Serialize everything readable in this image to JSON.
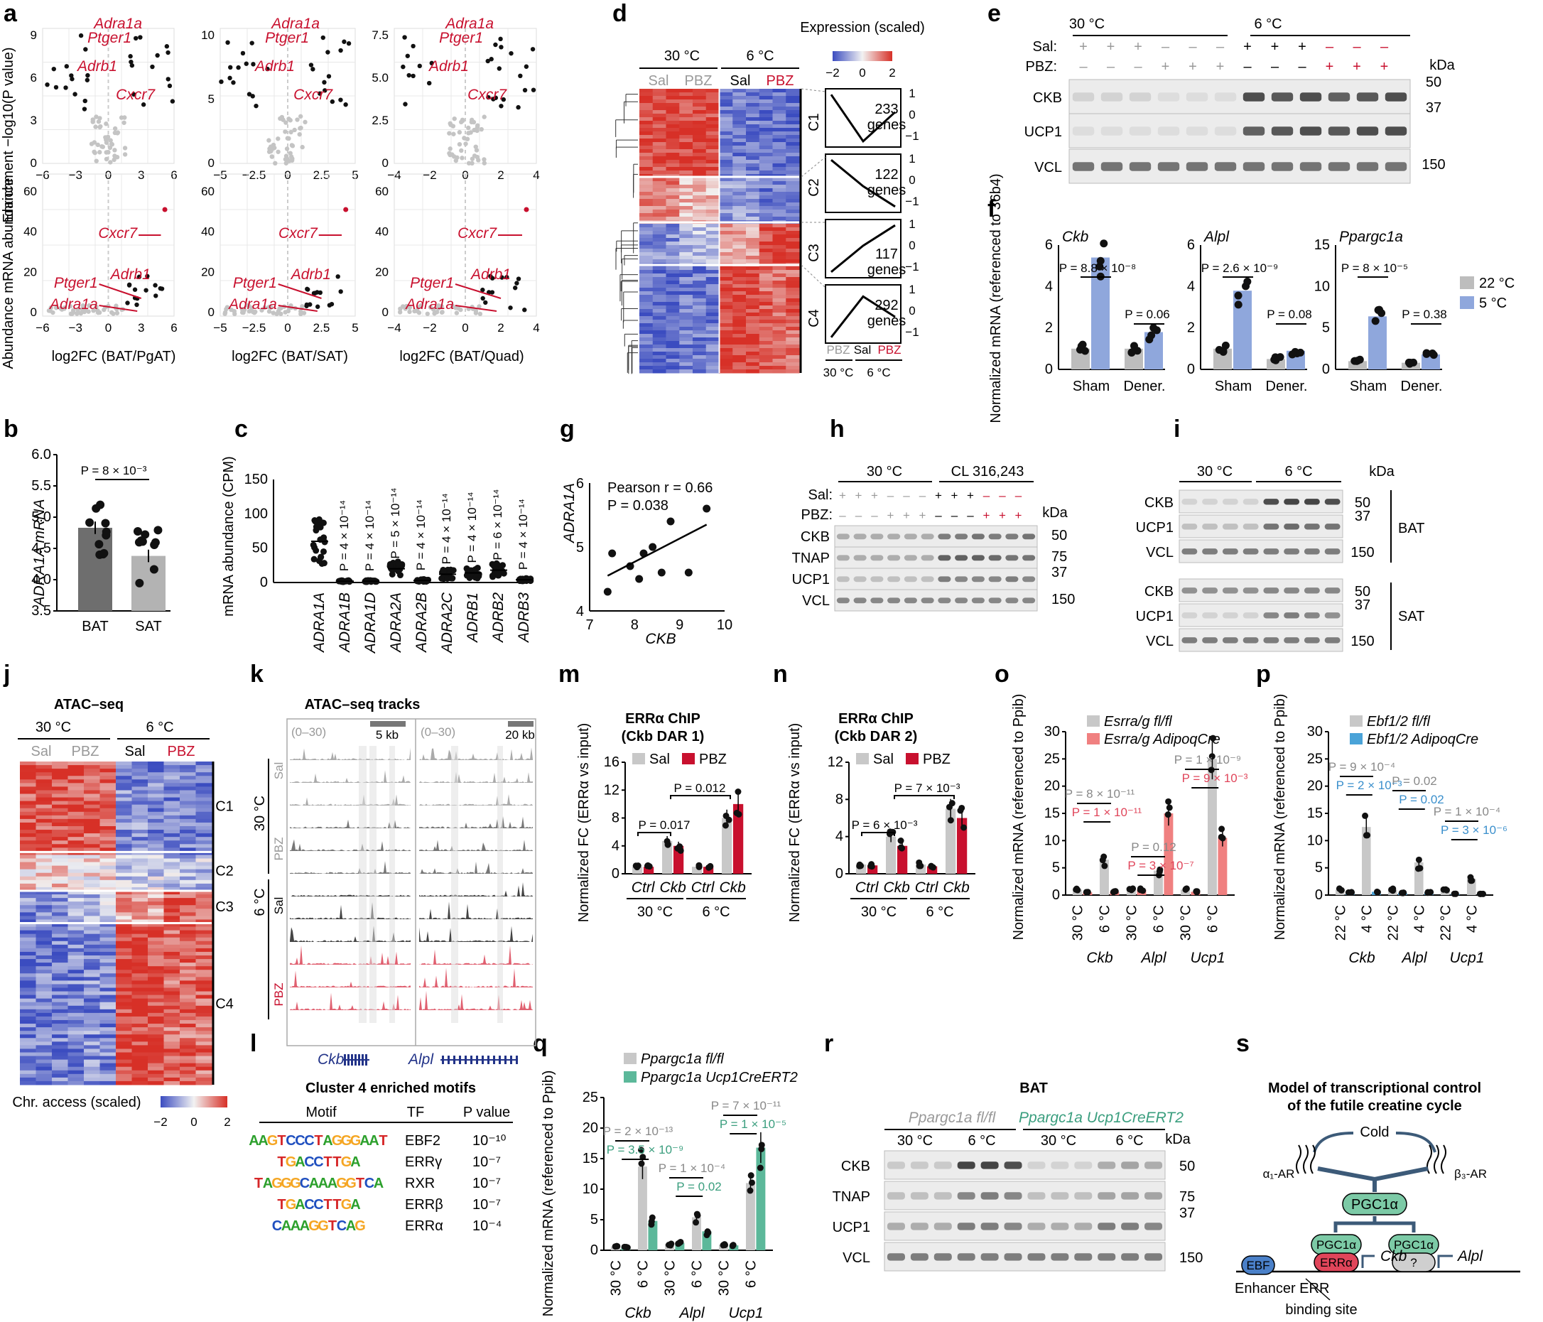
{
  "panel_letters": [
    "a",
    "b",
    "c",
    "d",
    "e",
    "f",
    "g",
    "h",
    "i",
    "j",
    "k",
    "l",
    "m",
    "n",
    "o",
    "p",
    "q",
    "r",
    "s"
  ],
  "a": {
    "y_top": "Enrichment −log10(P value)",
    "y_bottom": "Abundance mRNA abundance",
    "x_labels": [
      "log2FC (BAT/PgAT)",
      "log2FC (BAT/SAT)",
      "log2FC (BAT/Quad)"
    ],
    "genes": [
      "Ptger1",
      "Adra1a",
      "Adrb1",
      "Cxcr7"
    ]
  },
  "b": {
    "ylabel": "ADRA1A mRNA",
    "pvalue": "P = 8 × 10⁻³",
    "chart_data": {
      "type": "bar",
      "categories": [
        "BAT",
        "SAT"
      ],
      "values": [
        4.83,
        4.38
      ],
      "ylim": [
        3.5,
        6.0
      ],
      "yticks": [
        "3.5",
        "4.0",
        "4.5",
        "5.0",
        "5.5",
        "6.0"
      ],
      "colors": [
        "#6e6e6e",
        "#b3b3b3"
      ]
    }
  },
  "c": {
    "ylabel": "mRNA abundance (CPM)",
    "chart_data": {
      "type": "scatter",
      "categories": [
        "ADRA1A",
        "ADRA1B",
        "ADRA1D",
        "ADRA2A",
        "ADRA2B",
        "ADRA2C",
        "ADRB1",
        "ADRB2",
        "ADRB3"
      ],
      "values": [
        60,
        2,
        2,
        20,
        3,
        12,
        14,
        18,
        4
      ],
      "ylim": [
        0,
        150
      ],
      "yticks": [
        "0",
        "50",
        "100",
        "150"
      ]
    },
    "pvalues": [
      "P = 4 × 10⁻¹⁴",
      "P = 4 × 10⁻¹⁴",
      "P = 5 × 10⁻¹⁴",
      "P = 4 × 10⁻¹⁴",
      "P = 4 × 10⁻¹⁴",
      "P = 4 × 10⁻¹⁴",
      "P = 6 × 10⁻¹⁴",
      "P = 4 × 10⁻¹⁴"
    ]
  },
  "d": {
    "groups": [
      "30 °C",
      "6 °C"
    ],
    "conds": [
      "Sal",
      "PBZ",
      "Sal",
      "PBZ"
    ],
    "scale_title": "Expression (scaled)",
    "scale_ticks": [
      "−2",
      "0",
      "2"
    ],
    "clusters": [
      {
        "id": "C1",
        "genes": "233 genes"
      },
      {
        "id": "C2",
        "genes": "122 genes"
      },
      {
        "id": "C3",
        "genes": "117 genes"
      },
      {
        "id": "C4",
        "genes": "292 genes"
      }
    ],
    "profile_x": [
      "PBZ",
      "Sal",
      "PBZ"
    ],
    "profile_temps": [
      "30 °C",
      "6 °C"
    ]
  },
  "e": {
    "temps": [
      "30 °C",
      "6 °C"
    ],
    "rows": [
      "Sal:",
      "PBZ:"
    ],
    "bands": [
      "CKB",
      "UCP1",
      "VCL"
    ],
    "kda": [
      "50",
      "37",
      "150"
    ],
    "kda_label": "kDa"
  },
  "f": {
    "ylabel": "Normalized mRNA (referenced to 36b4)",
    "legend": [
      "22 °C",
      "5 °C"
    ],
    "panels": [
      {
        "gene": "Ckb",
        "p1": "P = 8.8 × 10⁻⁸",
        "p2": "P = 0.06",
        "yticks": [
          "0",
          "2",
          "4",
          "6"
        ]
      },
      {
        "gene": "Alpl",
        "p1": "P = 2.6 × 10⁻⁹",
        "p2": "P = 0.08",
        "yticks": [
          "0",
          "2",
          "4",
          "6"
        ]
      },
      {
        "gene": "Ppargc1a",
        "p1": "P = 8 × 10⁻⁵",
        "p2": "P = 0.38",
        "yticks": [
          "0",
          "5",
          "10",
          "15"
        ]
      }
    ],
    "xcats": [
      "Sham",
      "Dener."
    ],
    "chart_data": {
      "type": "bar",
      "series": [
        {
          "name": "22 °C",
          "values": [
            1.0,
            1.0,
            1.0,
            0.5,
            1.0,
            0.8
          ]
        },
        {
          "name": "5 °C",
          "values": [
            5.4,
            1.8,
            3.8,
            0.9,
            6.4,
            1.8
          ]
        }
      ]
    }
  },
  "g": {
    "ylabel": "ADRA1A",
    "xlabel": "CKB",
    "stat1": "Pearson r = 0.66",
    "stat2": "P = 0.038",
    "chart_data": {
      "type": "scatter",
      "x": [
        7.4,
        7.5,
        7.9,
        8.1,
        8.2,
        8.4,
        8.6,
        8.8,
        9.2,
        9.6
      ],
      "y": [
        4.3,
        4.9,
        4.7,
        4.5,
        4.9,
        5.0,
        4.6,
        5.4,
        4.6,
        5.6
      ],
      "xlim": [
        7,
        10
      ],
      "ylim": [
        4,
        6
      ]
    },
    "xticks": [
      "7",
      "8",
      "9",
      "10"
    ],
    "yticks": [
      "4",
      "5",
      "6"
    ]
  },
  "h": {
    "temps": [
      "30 °C",
      "CL 316,243"
    ],
    "rows": [
      "Sal:",
      "PBZ:"
    ],
    "bands": [
      "CKB",
      "TNAP",
      "UCP1",
      "VCL"
    ],
    "kda": [
      "50",
      "75",
      "37",
      "150"
    ],
    "kda_label": "kDa"
  },
  "i": {
    "temps": [
      "30 °C",
      "6 °C"
    ],
    "bands_bat": [
      "CKB",
      "UCP1",
      "VCL"
    ],
    "bands_sat": [
      "CKB",
      "UCP1",
      "VCL"
    ],
    "kda": [
      "50",
      "37",
      "150"
    ],
    "kda_label": "kDa",
    "tissues": [
      "BAT",
      "SAT"
    ]
  },
  "j": {
    "title": "ATAC–seq",
    "temps": [
      "30 °C",
      "6 °C"
    ],
    "conds": [
      "Sal",
      "PBZ",
      "Sal",
      "PBZ"
    ],
    "clusters": [
      "C1",
      "C2",
      "C3",
      "C4"
    ],
    "scale_label": "Chr. access (scaled)",
    "scale_ticks": [
      "−2",
      "0",
      "2"
    ]
  },
  "k": {
    "title": "ATAC–seq tracks",
    "range": "(0–30)",
    "scale1": "5 kb",
    "scale2": "20 kb",
    "temps": [
      "30 °C",
      "6 °C"
    ],
    "conds": [
      "Sal",
      "PBZ",
      "Sal",
      "PBZ"
    ],
    "genes": [
      "Ckb",
      "Alpl"
    ]
  },
  "l": {
    "title": "Cluster 4 enriched motifs",
    "headers": [
      "Motif",
      "TF",
      "P value"
    ],
    "rows": [
      {
        "seq": "AAGTCCCTAGGGAAT",
        "tf": "EBF2",
        "p": "10⁻¹⁰"
      },
      {
        "seq": "TGACCTTGA",
        "tf": "ERRγ",
        "p": "10⁻⁷"
      },
      {
        "seq": "TAGGGCAAAGGTCA",
        "tf": "RXR",
        "p": "10⁻⁷"
      },
      {
        "seq": "TGACCTTGA",
        "tf": "ERRβ",
        "p": "10⁻⁷"
      },
      {
        "seq": "CAAAGGTCAG",
        "tf": "ERRα",
        "p": "10⁻⁴"
      }
    ]
  },
  "m": {
    "title1": "ERRα ChIP",
    "title2": "(Ckb DAR 1)",
    "ylabel": "Normalized FC (ERRα vs input)",
    "legend": [
      "Sal",
      "PBZ"
    ],
    "p1": "P = 0.017",
    "p2": "P = 0.012",
    "xcats": [
      "Ctrl",
      "Ckb",
      "Ctrl",
      "Ckb"
    ],
    "temps": [
      "30 °C",
      "6 °C"
    ],
    "yticks": [
      "0",
      "4",
      "8",
      "12",
      "16"
    ],
    "chart_data": {
      "type": "bar",
      "series": [
        {
          "name": "Sal",
          "values": [
            1.0,
            4.7,
            1.0,
            8.0
          ]
        },
        {
          "name": "PBZ",
          "values": [
            1.0,
            4.0,
            1.0,
            10.0
          ]
        }
      ],
      "ylim": [
        0,
        16
      ]
    }
  },
  "n": {
    "title1": "ERRα ChIP",
    "title2": "(Ckb DAR 2)",
    "ylabel": "Normalized FC (ERRα vs input)",
    "legend": [
      "Sal",
      "PBZ"
    ],
    "p1": "P = 6 × 10⁻³",
    "p2": "P = 7 × 10⁻³",
    "xcats": [
      "Ctrl",
      "Ckb",
      "Ctrl",
      "Ckb"
    ],
    "temps": [
      "30 °C",
      "6 °C"
    ],
    "yticks": [
      "0",
      "4",
      "8",
      "12"
    ],
    "chart_data": {
      "type": "bar",
      "series": [
        {
          "name": "Sal",
          "values": [
            1.0,
            4.0,
            1.0,
            7.0
          ]
        },
        {
          "name": "PBZ",
          "values": [
            0.9,
            3.0,
            0.8,
            6.0
          ]
        }
      ],
      "ylim": [
        0,
        12
      ]
    }
  },
  "o": {
    "ylabel": "Normalized mRNA (referenced to Ppib)",
    "legend": [
      "Esrra/g fl/fl",
      "Esrra/g AdipoqCre"
    ],
    "pg": [
      "P = 8 × 10⁻¹¹",
      "P = 0.12",
      "P = 1 × 10⁻⁹"
    ],
    "pr": [
      "P = 1 × 10⁻¹¹",
      "P = 3 × 10⁻⁷",
      "P = 9 × 10⁻³"
    ],
    "genes": [
      "Ckb",
      "Alpl",
      "Ucp1"
    ],
    "temps": [
      "30 °C",
      "6 °C"
    ],
    "yticks": [
      "0",
      "5",
      "10",
      "15",
      "20",
      "25",
      "30"
    ],
    "chart_data": {
      "type": "bar",
      "series": [
        {
          "name": "Esrra/g fl/fl",
          "values": [
            1,
            6.5,
            1,
            4.5,
            1,
            25
          ]
        },
        {
          "name": "Esrra/g AdipoqCre",
          "values": [
            0.5,
            0.6,
            1,
            15,
            0.6,
            10.5
          ]
        }
      ],
      "ylim": [
        0,
        30
      ]
    }
  },
  "p": {
    "ylabel": "Normalized mRNA (referenced to Ppib)",
    "legend": [
      "Ebf1/2 fl/fl",
      "Ebf1/2 AdipoqCre"
    ],
    "pg": [
      "P = 9 × 10⁻⁴",
      "P = 0.02",
      "P = 1 × 10⁻⁴"
    ],
    "pb": [
      "P = 2 × 10⁻³",
      "P = 0.02",
      "P = 3 × 10⁻⁶"
    ],
    "genes": [
      "Ckb",
      "Alpl",
      "Ucp1"
    ],
    "temps": [
      "22 °C",
      "4 °C"
    ],
    "yticks": [
      "0",
      "5",
      "10",
      "15",
      "20",
      "25",
      "30"
    ],
    "chart_data": {
      "type": "bar",
      "series": [
        {
          "name": "Ebf1/2 fl/fl",
          "values": [
            1,
            12.5,
            1,
            6,
            1,
            3
          ]
        },
        {
          "name": "Ebf1/2 AdipoqCre",
          "values": [
            0.5,
            0.6,
            0.4,
            0.5,
            0.2,
            0.2
          ]
        }
      ],
      "ylim": [
        0,
        30
      ]
    }
  },
  "q": {
    "ylabel": "Normalized mRNA (referenced to Ppib)",
    "legend": [
      "Ppargc1a fl/fl",
      "Ppargc1a Ucp1CreERT2"
    ],
    "pg": [
      "P = 2 × 10⁻¹³",
      "P = 1 × 10⁻⁴",
      "P = 7 × 10⁻¹¹"
    ],
    "pt": [
      "P = 3.5 × 10⁻⁹",
      "P = 0.02",
      "P = 1 × 10⁻⁵"
    ],
    "genes": [
      "Ckb",
      "Alpl",
      "Ucp1"
    ],
    "temps": [
      "30 °C",
      "6 °C"
    ],
    "yticks": [
      "0",
      "5",
      "10",
      "15",
      "20",
      "25"
    ],
    "chart_data": {
      "type": "bar",
      "series": [
        {
          "name": "Ppargc1a fl/fl",
          "values": [
            0.6,
            13.7,
            1,
            5.4,
            0.9,
            11
          ]
        },
        {
          "name": "Ppargc1a Ucp1CreERT2",
          "values": [
            0.5,
            4.8,
            1.2,
            3.1,
            0.8,
            16.8
          ]
        }
      ],
      "ylim": [
        0,
        25
      ]
    }
  },
  "r": {
    "title": "BAT",
    "groups": [
      "Ppargc1a fl/fl",
      "Ppargc1a Ucp1CreERT2"
    ],
    "temps": [
      "30 °C",
      "6 °C",
      "30 °C",
      "6 °C"
    ],
    "bands": [
      "CKB",
      "TNAP",
      "UCP1",
      "VCL"
    ],
    "kda": [
      "50",
      "75",
      "37",
      "150"
    ],
    "kda_label": "kDa"
  },
  "s": {
    "title1": "Model of transcriptional control",
    "title2": "of the futile creatine cycle",
    "cold": "Cold",
    "a1": "α₁-AR",
    "b3": "β₃-AR",
    "pgc": "PGC1α",
    "ebf": "EBF",
    "erra": "ERRα",
    "q": "?",
    "ckb": "Ckb",
    "alpl": "Alpl",
    "foot1": "Enhancer ERR",
    "foot2": "binding site"
  }
}
